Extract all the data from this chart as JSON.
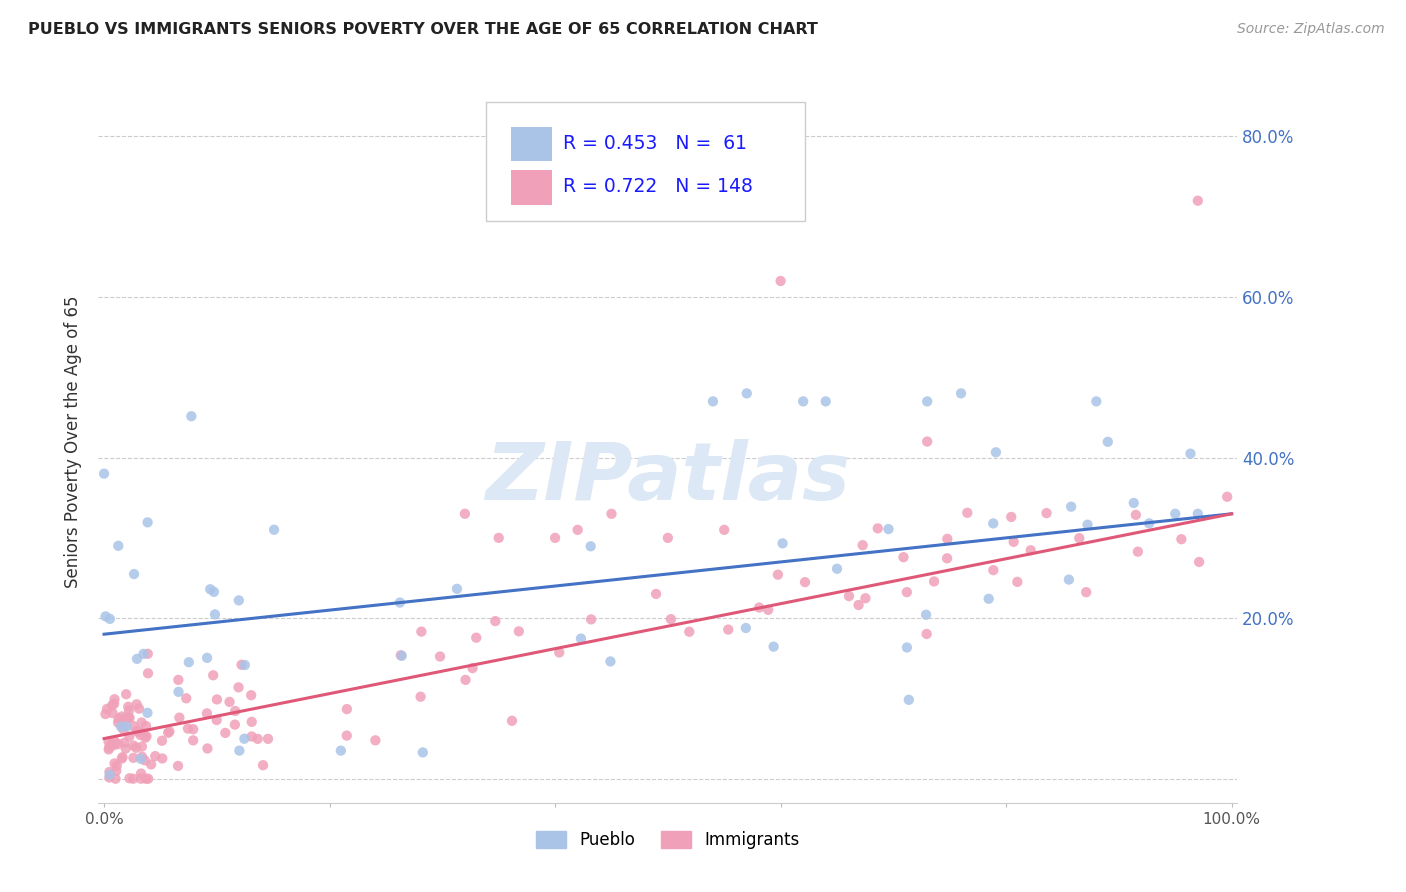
{
  "title": "PUEBLO VS IMMIGRANTS SENIORS POVERTY OVER THE AGE OF 65 CORRELATION CHART",
  "source": "Source: ZipAtlas.com",
  "ylabel": "Seniors Poverty Over the Age of 65",
  "pueblo_color": "#aac4e8",
  "immigrants_color": "#f0a0b8",
  "pueblo_line_color": "#4472c4",
  "immigrants_line_color": "#e05878",
  "pueblo_R": 0.453,
  "pueblo_N": 61,
  "immigrants_R": 0.722,
  "immigrants_N": 148,
  "watermark_text": "ZIPatlas",
  "right_tick_color": "#4472c4",
  "title_color": "#222222",
  "source_color": "#999999"
}
